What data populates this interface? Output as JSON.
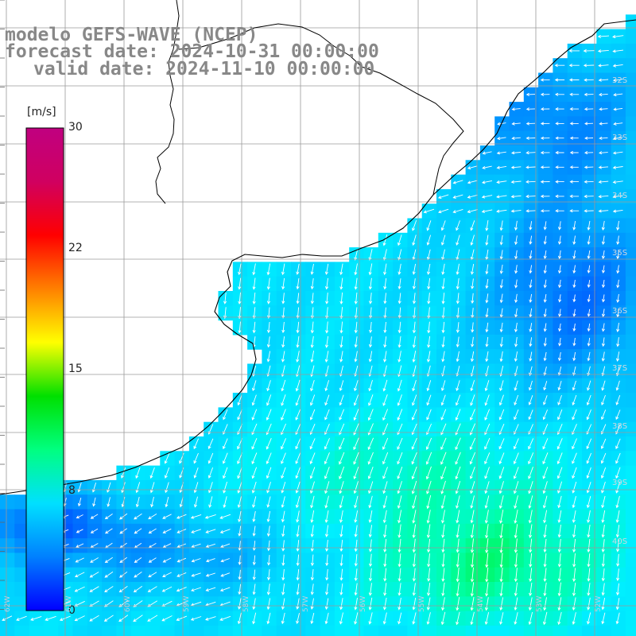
{
  "title": {
    "model": "modelo GEFS-WAVE (NCEP)",
    "forecast": "forecast date: 2024-10-31 00:00:00",
    "valid": "valid date: 2024-11-10 00:00:00"
  },
  "colorbar": {
    "unit": "[m/s]",
    "ticks": [
      {
        "value": 30,
        "label": "30"
      },
      {
        "value": 22,
        "label": "22"
      },
      {
        "value": 15,
        "label": "15"
      },
      {
        "value": 8,
        "label": "8"
      },
      {
        "value": 0,
        "label": "0"
      }
    ],
    "colors": [
      "#0000ff",
      "#0080ff",
      "#00e0ff",
      "#00ff80",
      "#00e000",
      "#ffff00",
      "#ff8000",
      "#ff0000",
      "#d00060",
      "#c00080"
    ]
  },
  "map": {
    "land_color": "#ffffff",
    "coastline_color": "#000000",
    "grid_color": "#9a9a9a",
    "arrow_color": "#ffffff",
    "lat_labels": [
      "32S",
      "33S",
      "34S",
      "35S",
      "36S",
      "37S",
      "38S",
      "39S",
      "40S"
    ],
    "lon_labels": [
      "62W",
      "61W",
      "60W",
      "59W",
      "58W",
      "57W",
      "56W",
      "55W",
      "54W",
      "53W",
      "52W"
    ]
  }
}
